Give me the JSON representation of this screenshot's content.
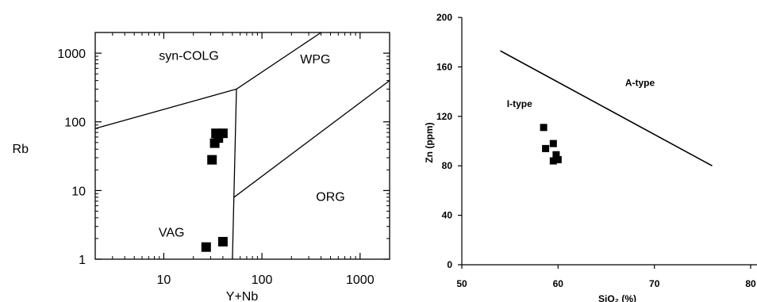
{
  "chart_data": [
    {
      "type": "scatter",
      "title": "",
      "xlabel": "Y+Nb",
      "ylabel": "Rb",
      "x_scale": "log",
      "y_scale": "log",
      "xlim": [
        2,
        2000
      ],
      "ylim": [
        1,
        2000
      ],
      "x_ticks": [
        10,
        100,
        1000
      ],
      "x_tick_labels": [
        "10",
        "100",
        "1000"
      ],
      "y_ticks": [
        1,
        10,
        100,
        1000
      ],
      "y_tick_labels": [
        "1",
        "10",
        "100",
        "1000"
      ],
      "grid": false,
      "legend": "none",
      "regions": [
        {
          "label": "syn-COLG",
          "x": 18,
          "y": 900
        },
        {
          "label": "WPG",
          "x": 350,
          "y": 800
        },
        {
          "label": "VAG",
          "x": 12,
          "y": 2.4
        },
        {
          "label": "ORG",
          "x": 500,
          "y": 8
        }
      ],
      "boundaries": [
        [
          [
            2,
            80
          ],
          [
            55,
            300
          ]
        ],
        [
          [
            55,
            300
          ],
          [
            400,
            2000
          ]
        ],
        [
          [
            55,
            300
          ],
          [
            50,
            1
          ]
        ],
        [
          [
            52,
            8
          ],
          [
            2000,
            400
          ]
        ]
      ],
      "series": [
        {
          "marker": "square",
          "color": "#000000",
          "points": [
            {
              "x": 34,
              "y": 68
            },
            {
              "x": 40,
              "y": 68
            },
            {
              "x": 36,
              "y": 58
            },
            {
              "x": 33,
              "y": 49
            },
            {
              "x": 31,
              "y": 28
            },
            {
              "x": 27,
              "y": 1.5
            },
            {
              "x": 40,
              "y": 1.8
            }
          ]
        }
      ]
    },
    {
      "type": "scatter",
      "title": "",
      "xlabel": "SiO₂ (%)",
      "ylabel": "Zn (ppm)",
      "xlim": [
        50,
        80
      ],
      "ylim": [
        0,
        200
      ],
      "x_ticks": [
        50,
        60,
        70,
        80
      ],
      "x_tick_labels": [
        "50",
        "60",
        "70",
        "80"
      ],
      "y_ticks": [
        0,
        40,
        80,
        120,
        160,
        200
      ],
      "y_tick_labels": [
        "0",
        "40",
        "80",
        "120",
        "160",
        "200"
      ],
      "grid": false,
      "legend": "none",
      "regions": [
        {
          "label": "I-type",
          "x": 56,
          "y": 130
        },
        {
          "label": "A-type",
          "x": 68.5,
          "y": 147
        }
      ],
      "boundaries": [
        [
          [
            54,
            173
          ],
          [
            76,
            80
          ]
        ]
      ],
      "series": [
        {
          "marker": "square",
          "color": "#000000",
          "points": [
            {
              "x": 58.5,
              "y": 111
            },
            {
              "x": 58.7,
              "y": 94
            },
            {
              "x": 59.5,
              "y": 98
            },
            {
              "x": 59.8,
              "y": 89
            },
            {
              "x": 59.5,
              "y": 84
            },
            {
              "x": 60.0,
              "y": 85
            }
          ]
        }
      ]
    }
  ]
}
